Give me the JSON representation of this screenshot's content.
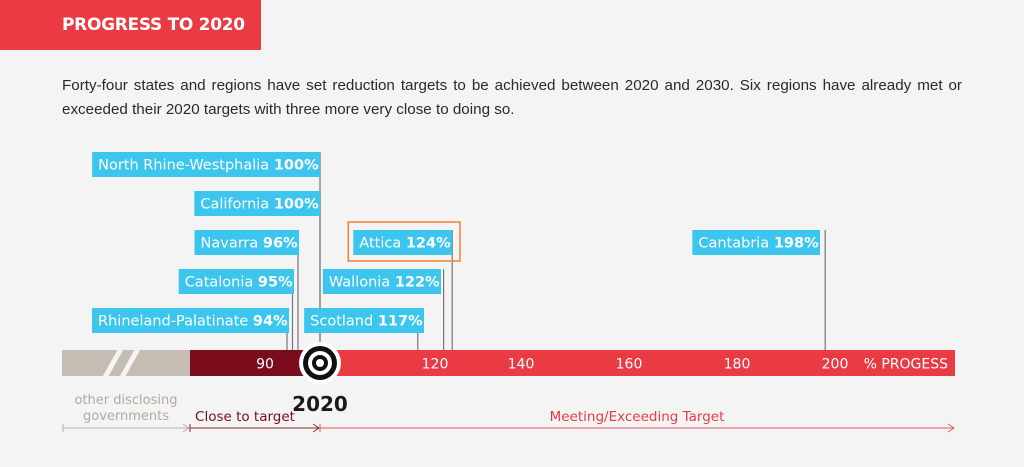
{
  "header": {
    "title": "PROGRESS TO 2020"
  },
  "intro": "Forty-four states and regions have set reduction targets to be achieved between 2020 and 2030. Six regions have already met or exceeded their 2020 targets with three more very close to doing so.",
  "colors": {
    "accent_red": "#ea3b44",
    "dark_red": "#7a0c1c",
    "label_blue": "#3cc6ee",
    "highlight_orange": "#f0883a",
    "gray_bar": "#c5bdb4",
    "connector_gray": "#777777"
  },
  "chart_data": {
    "type": "timeline",
    "axis_label": "% PROGESS",
    "milestone_label": "2020",
    "milestone_value": 100,
    "ticks": [
      90,
      120,
      140,
      160,
      180,
      200
    ],
    "regions": [
      {
        "name": "North Rhine-Westphalia",
        "pct_label": "100%",
        "value": 100
      },
      {
        "name": "California",
        "pct_label": "100%",
        "value": 100
      },
      {
        "name": "Navarra",
        "pct_label": "96%",
        "value": 96
      },
      {
        "name": "Catalonia",
        "pct_label": "95%",
        "value": 95
      },
      {
        "name": "Rhineland-Palatinate",
        "pct_label": "94%",
        "value": 94
      },
      {
        "name": "Attica",
        "pct_label": "124%",
        "value": 124,
        "highlight": true
      },
      {
        "name": "Wallonia",
        "pct_label": "122%",
        "value": 122
      },
      {
        "name": "Scotland",
        "pct_label": "117%",
        "value": 117
      },
      {
        "name": "Cantabria",
        "pct_label": "198%",
        "value": 198
      }
    ],
    "segments": [
      {
        "label": "other disclosing governments",
        "lines": [
          "other disclosing",
          "governments"
        ],
        "color": "#c5bdb4"
      },
      {
        "label": "Close to target",
        "lines": [
          "Close to target"
        ],
        "color": "#7a0c1c"
      },
      {
        "label": "Meeting/Exceeding Target",
        "lines": [
          "Meeting/Exceeding Target"
        ],
        "color": "#ea3b44"
      }
    ]
  }
}
